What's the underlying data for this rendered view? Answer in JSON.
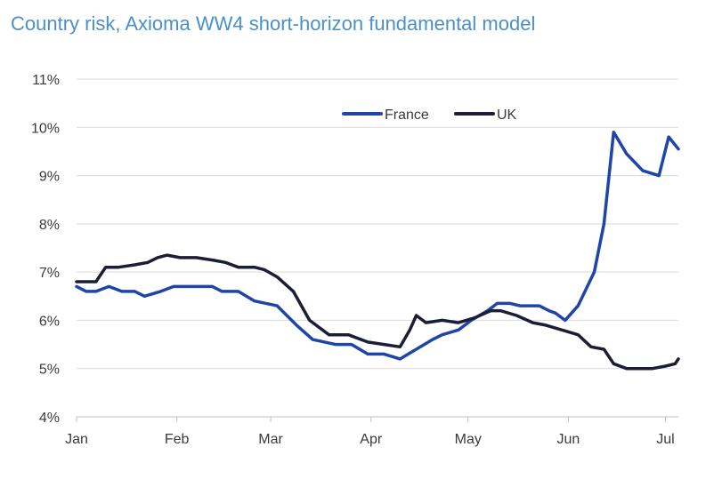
{
  "chart_data": {
    "type": "line",
    "title": "Country risk, Axioma WW4 short-horizon fundamental model",
    "xlabel": "",
    "ylabel": "",
    "x_ticks": [
      "Jan",
      "Feb",
      "Mar",
      "Apr",
      "May",
      "Jun",
      "Jul"
    ],
    "y_ticks": [
      "4%",
      "5%",
      "6%",
      "7%",
      "8%",
      "9%",
      "10%",
      "11%"
    ],
    "ylim": [
      4,
      11
    ],
    "xlim": [
      0,
      186
    ],
    "grid": "horizontal",
    "legend": "top-right",
    "series": [
      {
        "name": "France",
        "color": "#1f45a8",
        "x": [
          0,
          3,
          6,
          10,
          14,
          18,
          21,
          26,
          30,
          33,
          38,
          42,
          45,
          50,
          55,
          62,
          68,
          73,
          80,
          85,
          90,
          95,
          100,
          105,
          110,
          113,
          118,
          122,
          127,
          130,
          134,
          137,
          141,
          143,
          146,
          148,
          151,
          155,
          160,
          163,
          166,
          170,
          175,
          180,
          183,
          186
        ],
        "values": [
          6.7,
          6.6,
          6.6,
          6.7,
          6.6,
          6.6,
          6.5,
          6.6,
          6.7,
          6.7,
          6.7,
          6.7,
          6.6,
          6.6,
          6.4,
          6.3,
          5.9,
          5.6,
          5.5,
          5.5,
          5.3,
          5.3,
          5.2,
          5.4,
          5.6,
          5.7,
          5.8,
          6.0,
          6.2,
          6.35,
          6.35,
          6.3,
          6.3,
          6.3,
          6.2,
          6.15,
          6.0,
          6.3,
          7.0,
          8.0,
          9.9,
          9.45,
          9.1,
          9.0,
          9.8,
          9.55
        ]
      },
      {
        "name": "UK",
        "color": "#1b1e36",
        "x": [
          0,
          6,
          9,
          13,
          18,
          22,
          25,
          28,
          32,
          37,
          42,
          46,
          50,
          55,
          58,
          62,
          67,
          72,
          78,
          84,
          90,
          95,
          100,
          103,
          105,
          108,
          113,
          118,
          123,
          128,
          131,
          136,
          141,
          145,
          150,
          155,
          159,
          163,
          166,
          170,
          174,
          178,
          182,
          185,
          186
        ],
        "values": [
          6.8,
          6.8,
          7.1,
          7.1,
          7.15,
          7.2,
          7.3,
          7.35,
          7.3,
          7.3,
          7.25,
          7.2,
          7.1,
          7.1,
          7.05,
          6.9,
          6.6,
          6.0,
          5.7,
          5.7,
          5.55,
          5.5,
          5.45,
          5.8,
          6.1,
          5.95,
          6.0,
          5.95,
          6.05,
          6.2,
          6.2,
          6.1,
          5.95,
          5.9,
          5.8,
          5.7,
          5.45,
          5.4,
          5.1,
          5.0,
          5.0,
          5.0,
          5.05,
          5.1,
          5.2
        ]
      }
    ]
  }
}
